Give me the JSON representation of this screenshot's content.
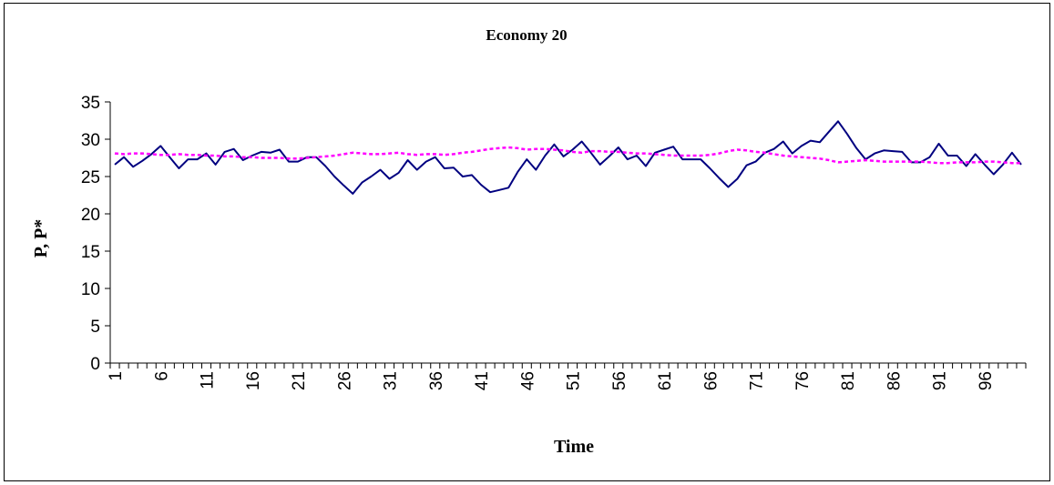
{
  "chart_data": {
    "type": "line",
    "title": "Economy 20",
    "xlabel": "Time",
    "ylabel": "P, P*",
    "ylim": [
      0,
      35
    ],
    "yticks": [
      "0",
      "5",
      "10",
      "15",
      "20",
      "25",
      "30",
      "35"
    ],
    "x": [
      1,
      2,
      3,
      4,
      5,
      6,
      7,
      8,
      9,
      10,
      11,
      12,
      13,
      14,
      15,
      16,
      17,
      18,
      19,
      20,
      21,
      22,
      23,
      24,
      25,
      26,
      27,
      28,
      29,
      30,
      31,
      32,
      33,
      34,
      35,
      36,
      37,
      38,
      39,
      40,
      41,
      42,
      43,
      44,
      45,
      46,
      47,
      48,
      49,
      50,
      51,
      52,
      53,
      54,
      55,
      56,
      57,
      58,
      59,
      60,
      61,
      62,
      63,
      64,
      65,
      66,
      67,
      68,
      69,
      70,
      71,
      72,
      73,
      74,
      75,
      76,
      77,
      78,
      79,
      80,
      81,
      82,
      83,
      84,
      85,
      86,
      87,
      88,
      89,
      90,
      91,
      92,
      93,
      94,
      95,
      96,
      97,
      98,
      99,
      100
    ],
    "xtick_labels": [
      "1",
      "6",
      "11",
      "16",
      "21",
      "26",
      "31",
      "36",
      "41",
      "46",
      "51",
      "56",
      "61",
      "66",
      "71",
      "76",
      "81",
      "86",
      "91",
      "96"
    ],
    "grid": false,
    "legend": "none",
    "series": [
      {
        "style": "solid",
        "color": "#000080",
        "values": [
          26.6,
          27.6,
          26.3,
          27.1,
          28.0,
          29.1,
          27.6,
          26.1,
          27.3,
          27.3,
          28.1,
          26.6,
          28.3,
          28.7,
          27.2,
          27.8,
          28.3,
          28.2,
          28.6,
          27.0,
          27.0,
          27.6,
          27.6,
          26.4,
          25.0,
          23.8,
          22.7,
          24.2,
          25.0,
          25.9,
          24.7,
          25.5,
          27.2,
          25.9,
          27.0,
          27.6,
          26.1,
          26.2,
          25.0,
          25.2,
          23.9,
          22.9,
          23.2,
          23.5,
          25.6,
          27.3,
          25.9,
          27.8,
          29.3,
          27.7,
          28.6,
          29.7,
          28.2,
          26.6,
          27.7,
          28.9,
          27.3,
          27.8,
          26.4,
          28.2,
          28.6,
          29.0,
          27.3,
          27.3,
          27.3,
          26.1,
          24.8,
          23.6,
          24.7,
          26.5,
          27.0,
          28.2,
          28.7,
          29.7,
          28.1,
          29.1,
          29.8,
          29.6,
          31.0,
          32.4,
          30.7,
          28.8,
          27.3,
          28.1,
          28.5,
          28.4,
          28.3,
          26.9,
          26.9,
          27.6,
          29.4,
          27.8,
          27.8,
          26.4,
          28.0,
          26.6,
          25.3,
          26.6,
          28.2,
          26.6
        ]
      },
      {
        "style": "dashed",
        "color": "#ff00ff",
        "values": [
          28.1,
          28.0,
          28.1,
          28.1,
          28.0,
          27.9,
          27.9,
          28.0,
          27.9,
          27.9,
          27.8,
          27.8,
          27.7,
          27.7,
          27.6,
          27.6,
          27.5,
          27.5,
          27.5,
          27.4,
          27.4,
          27.5,
          27.6,
          27.7,
          27.8,
          28.0,
          28.2,
          28.1,
          28.0,
          28.0,
          28.1,
          28.2,
          28.0,
          27.9,
          28.0,
          28.0,
          27.9,
          28.0,
          28.2,
          28.3,
          28.5,
          28.7,
          28.8,
          28.9,
          28.8,
          28.6,
          28.7,
          28.7,
          28.6,
          28.5,
          28.3,
          28.2,
          28.4,
          28.4,
          28.3,
          28.3,
          28.2,
          28.1,
          28.1,
          28.0,
          27.9,
          27.8,
          27.8,
          27.8,
          27.8,
          27.9,
          28.1,
          28.4,
          28.6,
          28.5,
          28.3,
          28.2,
          28.0,
          27.8,
          27.7,
          27.6,
          27.5,
          27.4,
          27.2,
          26.9,
          27.0,
          27.1,
          27.2,
          27.1,
          27.0,
          27.0,
          27.0,
          27.0,
          27.0,
          26.9,
          26.8,
          26.8,
          26.9,
          26.9,
          26.9,
          27.0,
          27.0,
          26.9,
          26.8,
          26.8
        ]
      }
    ]
  }
}
